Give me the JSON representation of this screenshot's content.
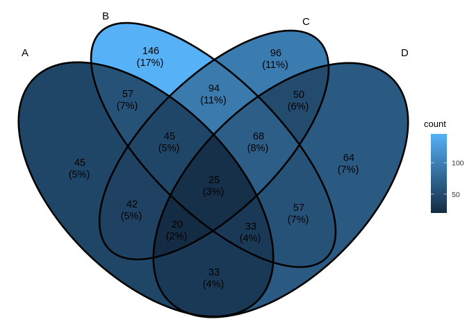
{
  "sets": [
    {
      "id": "A",
      "label": "A"
    },
    {
      "id": "B",
      "label": "B"
    },
    {
      "id": "C",
      "label": "C"
    },
    {
      "id": "D",
      "label": "D"
    }
  ],
  "regions": [
    {
      "id": "A",
      "sets": [
        "A"
      ],
      "count": "45",
      "percent": "(5%)"
    },
    {
      "id": "B",
      "sets": [
        "B"
      ],
      "count": "146",
      "percent": "(17%)"
    },
    {
      "id": "C",
      "sets": [
        "C"
      ],
      "count": "96",
      "percent": "(11%)"
    },
    {
      "id": "D",
      "sets": [
        "D"
      ],
      "count": "64",
      "percent": "(7%)"
    },
    {
      "id": "AB",
      "sets": [
        "A",
        "B"
      ],
      "count": "57",
      "percent": "(7%)"
    },
    {
      "id": "BC",
      "sets": [
        "B",
        "C"
      ],
      "count": "94",
      "percent": "(11%)"
    },
    {
      "id": "CD",
      "sets": [
        "C",
        "D"
      ],
      "count": "50",
      "percent": "(6%)"
    },
    {
      "id": "AC",
      "sets": [
        "A",
        "C"
      ],
      "count": "42",
      "percent": "(5%)"
    },
    {
      "id": "BD",
      "sets": [
        "B",
        "D"
      ],
      "count": "57",
      "percent": "(7%)"
    },
    {
      "id": "AD",
      "sets": [
        "A",
        "D"
      ],
      "count": "33",
      "percent": "(4%)"
    },
    {
      "id": "ABC",
      "sets": [
        "A",
        "B",
        "C"
      ],
      "count": "45",
      "percent": "(5%)"
    },
    {
      "id": "BCD",
      "sets": [
        "B",
        "C",
        "D"
      ],
      "count": "68",
      "percent": "(8%)"
    },
    {
      "id": "ACD",
      "sets": [
        "A",
        "C",
        "D"
      ],
      "count": "20",
      "percent": "(2%)"
    },
    {
      "id": "ABD",
      "sets": [
        "A",
        "B",
        "D"
      ],
      "count": "33",
      "percent": "(4%)"
    },
    {
      "id": "ABCD",
      "sets": [
        "A",
        "B",
        "C",
        "D"
      ],
      "count": "25",
      "percent": "(3%)"
    }
  ],
  "legend": {
    "title": "count",
    "breaks": [
      {
        "value": 50,
        "label": "50"
      },
      {
        "value": 100,
        "label": "100"
      }
    ],
    "range": [
      20,
      146
    ],
    "low_color": "#132B43",
    "high_color": "#56B1F7"
  },
  "outline_color": "#000000"
}
